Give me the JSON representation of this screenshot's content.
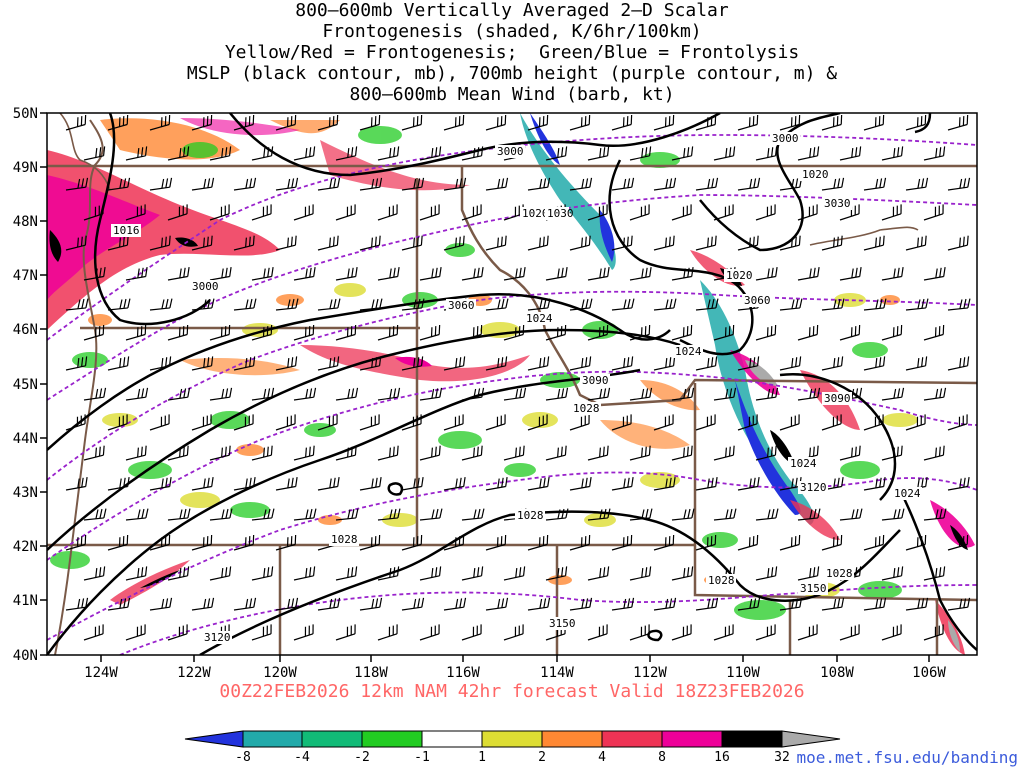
{
  "header": {
    "lines": [
      "800–600mb Vertically Averaged 2–D Scalar",
      "Frontogenesis (shaded, K/6hr/100km)",
      "Yellow/Red = Frontogenesis;  Green/Blue = Frontolysis",
      "MSLP (black contour, mb), 700mb height (purple contour, m) &",
      "800–600mb Mean Wind (barb, kt)"
    ]
  },
  "map": {
    "lat_labels": [
      "50N",
      "49N",
      "48N",
      "47N",
      "46N",
      "45N",
      "44N",
      "43N",
      "42N",
      "41N",
      "40N"
    ],
    "lon_labels": [
      "124W",
      "122W",
      "120W",
      "118W",
      "116W",
      "114W",
      "112W",
      "110W",
      "108W",
      "106W"
    ],
    "mslp_labels": [
      "1016",
      "1020",
      "1020",
      "1020",
      "1024",
      "1024",
      "1024",
      "1024",
      "1028",
      "1028",
      "1028",
      "1028",
      "1028",
      "1030"
    ],
    "height_labels": [
      "3000",
      "3000",
      "3000",
      "3030",
      "3060",
      "3060",
      "3090",
      "3090",
      "3120",
      "3120",
      "3150",
      "3150"
    ],
    "colors": {
      "frontolysis_strong": "#1f3fe6",
      "frontolysis": "#11aa88",
      "frontolysis_weak": "#22cc22",
      "frontogenesis_weak": "#dddd33",
      "frontogenesis": "#ff8833",
      "frontogenesis_strong": "#ee3355",
      "frontogenesis_max": "#ee0099",
      "mslp_contour": "#000000",
      "height_contour": "#9922cc",
      "borders": "#7a5a48"
    }
  },
  "footer": {
    "valid_text": "00Z22FEB2026 12km NAM 42hr forecast Valid 18Z23FEB2026",
    "credit": "moe.met.fsu.edu/banding"
  },
  "colorbar": {
    "labels": [
      "-8",
      "-4",
      "-2",
      "-1",
      "1",
      "2",
      "4",
      "8",
      "16",
      "32"
    ],
    "colors": [
      "#2233dd",
      "#22aaaa",
      "#11bb77",
      "#22cc22",
      "#ffffff",
      "#dddd33",
      "#ff8833",
      "#ee3355",
      "#ee0099",
      "#000000",
      "#aaaaaa"
    ]
  }
}
